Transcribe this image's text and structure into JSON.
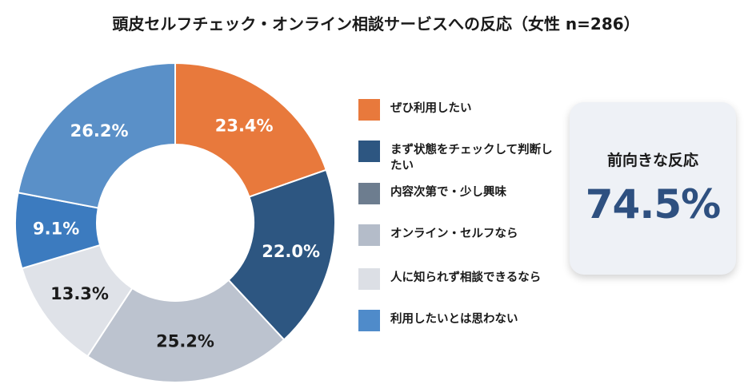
{
  "title": "頭皮セルフチェック・オンライン相談サービスへの反応（女性 n=286）",
  "chart_data": {
    "type": "pie",
    "title": "頭皮セルフチェック・オンライン相談サービスへの反応（女性 n=286）",
    "donut": true,
    "legend_position": "right",
    "slices": [
      {
        "label": "ぜひ利用したい",
        "value": 23.4,
        "display": "23.4%",
        "color": "#e8793c",
        "text_color": "#ffffff"
      },
      {
        "label": "まず状態をチェックして判断したい",
        "value": 22.0,
        "display": "22.0%",
        "color": "#2d5681",
        "text_color": "#ffffff"
      },
      {
        "label": "内容次第で・少し興味",
        "value": 25.2,
        "display": "25.2%",
        "color": "#bcc3cf",
        "text_color": "#1a1a1a"
      },
      {
        "label": "オンライン・セルフなら",
        "value": 13.3,
        "display": "13.3%",
        "color": "#dfe2e8",
        "text_color": "#1a1a1a"
      },
      {
        "label": "人に知られず相談できるなら",
        "value": 9.1,
        "display": "9.1%",
        "color": "#3c7bbf",
        "text_color": "#ffffff"
      },
      {
        "label": "利用したいとは思わない",
        "value": 26.2,
        "display": "26.2%",
        "color": "#5a90c8",
        "text_color": "#ffffff"
      }
    ]
  },
  "legend": [
    {
      "label": "ぜひ利用したい",
      "color": "#e8793c"
    },
    {
      "label": "まず状態をチェックして判断したい",
      "color": "#2d5681"
    },
    {
      "label": "内容次第で・少し興味",
      "color": "#6d7d8f"
    },
    {
      "label": "オンライン・セルフなら",
      "color": "#b4bcc9"
    },
    {
      "label": "人に知られず相談できるなら",
      "color": "#dcdfe5"
    },
    {
      "label": "利用したいとは思わない",
      "color": "#4f8bca"
    }
  ],
  "summary": {
    "label": "前向きな反応",
    "value": "74.5%"
  }
}
